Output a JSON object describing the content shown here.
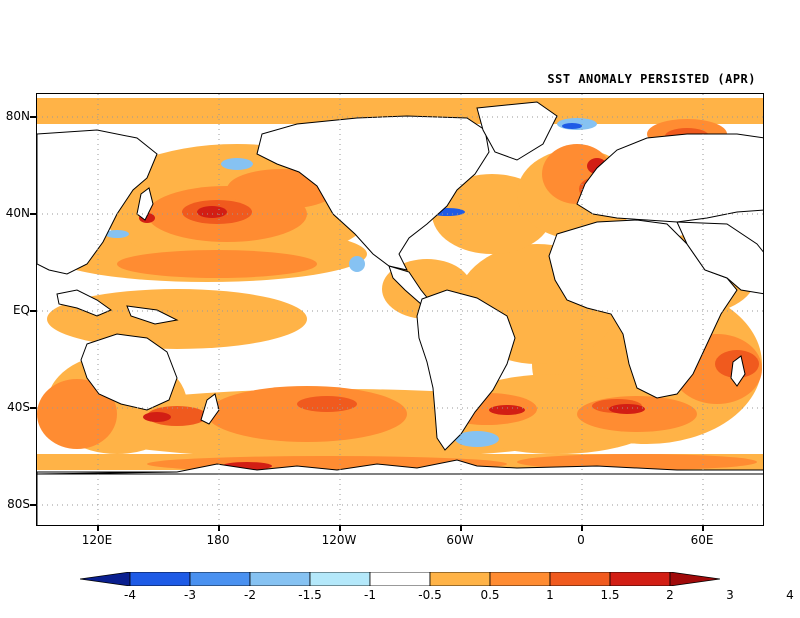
{
  "title": "SST ANOMALY PERSISTED (APR)",
  "lat_labels": [
    "80N",
    "40N",
    "EQ",
    "40S",
    "80S"
  ],
  "lon_labels": [
    "120E",
    "180",
    "120W",
    "60W",
    "0",
    "60E"
  ],
  "colorbar": {
    "labels": [
      "-4",
      "-3",
      "-2",
      "-1.5",
      "-1",
      "-0.5",
      "0.5",
      "1",
      "1.5",
      "2",
      "3",
      "4"
    ],
    "colors": [
      "#0a1f8f",
      "#1e5be6",
      "#4a91f0",
      "#86c2f2",
      "#b4e8fa",
      "#ffffff",
      "#ffb347",
      "#ff8c32",
      "#f05a1e",
      "#d21e14",
      "#a00a0a"
    ]
  },
  "colors": {
    "warm_light": "#ffb347",
    "warm_mid": "#ff8c32",
    "warm_strong": "#f05a1e",
    "hot": "#d21e14",
    "hottest": "#a00a0a",
    "cool": "#86c2f2",
    "cool_strong": "#1e5be6"
  }
}
